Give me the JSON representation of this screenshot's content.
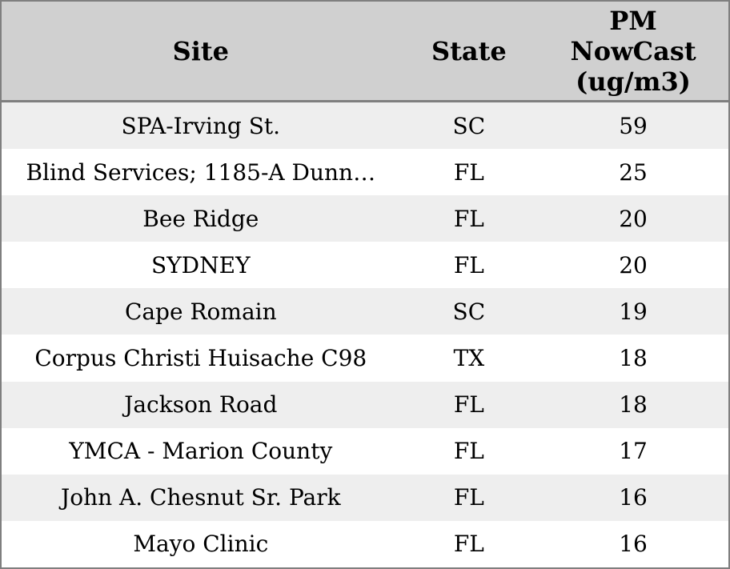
{
  "table": {
    "columns": [
      {
        "label": "Site"
      },
      {
        "label": "State"
      },
      {
        "label": "PM NowCast (ug/m3)",
        "lines": [
          "PM",
          "NowCast",
          "(ug/m3)"
        ]
      }
    ],
    "rows": [
      {
        "site": "SPA-Irving St.",
        "state": "SC",
        "value": "59"
      },
      {
        "site": "Blind Services; 1185-A Dunn…",
        "state": "FL",
        "value": "25"
      },
      {
        "site": "Bee Ridge",
        "state": "FL",
        "value": "20"
      },
      {
        "site": "SYDNEY",
        "state": "FL",
        "value": "20"
      },
      {
        "site": "Cape Romain",
        "state": "SC",
        "value": "19"
      },
      {
        "site": "Corpus Christi Huisache C98",
        "state": "TX",
        "value": "18"
      },
      {
        "site": "Jackson Road",
        "state": "FL",
        "value": "18"
      },
      {
        "site": "YMCA - Marion County",
        "state": "FL",
        "value": "17"
      },
      {
        "site": "John A. Chesnut Sr. Park",
        "state": "FL",
        "value": "16"
      },
      {
        "site": "Mayo Clinic",
        "state": "FL",
        "value": "16"
      }
    ]
  },
  "colors": {
    "header_bg": "#d0d0d0",
    "row_stripe_bg": "#eeeeee",
    "row_bg": "#ffffff",
    "border": "#7f7f7f",
    "text": "#000000"
  },
  "chart_data": {
    "type": "table",
    "title": "",
    "columns": [
      "Site",
      "State",
      "PM NowCast (ug/m3)"
    ],
    "rows": [
      [
        "SPA-Irving St.",
        "SC",
        59
      ],
      [
        "Blind Services; 1185-A Dunn…",
        "FL",
        25
      ],
      [
        "Bee Ridge",
        "FL",
        20
      ],
      [
        "SYDNEY",
        "FL",
        20
      ],
      [
        "Cape Romain",
        "SC",
        19
      ],
      [
        "Corpus Christi Huisache C98",
        "TX",
        18
      ],
      [
        "Jackson Road",
        "FL",
        18
      ],
      [
        "YMCA - Marion County",
        "FL",
        17
      ],
      [
        "John A. Chesnut Sr. Park",
        "FL",
        16
      ],
      [
        "Mayo Clinic",
        "FL",
        16
      ]
    ],
    "layout_hints": {
      "striped_rows": true,
      "sorted_by": "PM NowCast (ug/m3) descending",
      "alignment": "center"
    }
  }
}
